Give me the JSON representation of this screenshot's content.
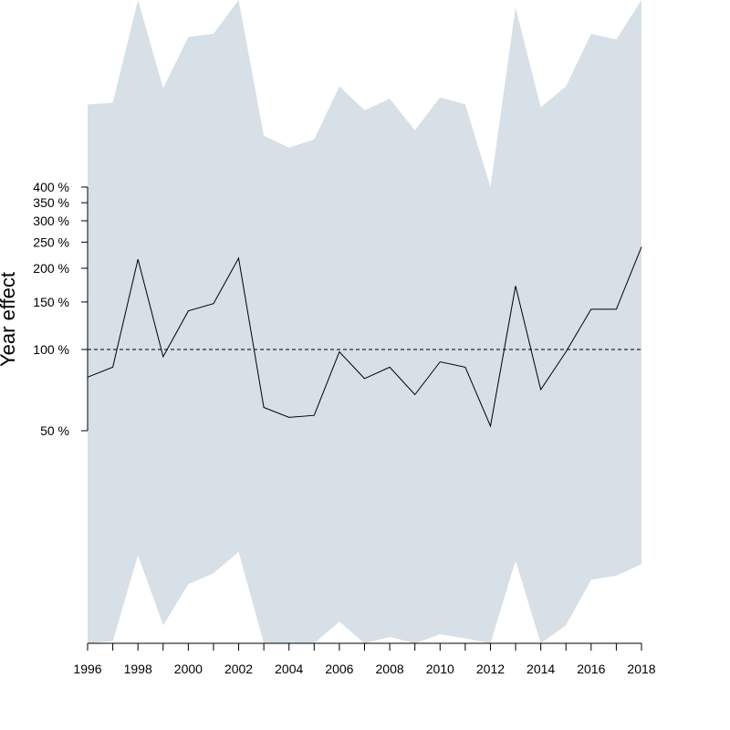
{
  "chart_data": {
    "type": "line",
    "title": "",
    "xlabel": "",
    "ylabel": "Year effect",
    "y_scale": "log",
    "y_ticks": [
      50,
      100,
      150,
      200,
      250,
      300,
      350,
      400
    ],
    "y_tick_labels": [
      "50 %",
      "100 %",
      "150 %",
      "200 %",
      "250 %",
      "300 %",
      "350 %",
      "400 %"
    ],
    "x_ticks": [
      1996,
      1998,
      2000,
      2002,
      2004,
      2006,
      2008,
      2010,
      2012,
      2014,
      2016,
      2018
    ],
    "x_tick_labels": [
      "1996",
      "1998",
      "2000",
      "2002",
      "2004",
      "2006",
      "2008",
      "2010",
      "2012",
      "2014",
      "2016",
      "2018"
    ],
    "reference_line": 100,
    "colors": {
      "band": "#d6e0e6",
      "line": "#000000"
    },
    "x": [
      1996,
      1997,
      1998,
      1999,
      2000,
      2001,
      2002,
      2003,
      2004,
      2005,
      2006,
      2007,
      2008,
      2009,
      2010,
      2011,
      2012,
      2013,
      2014,
      2015,
      2016,
      2017,
      2018
    ],
    "series": [
      {
        "role": "estimate",
        "values": [
          79,
          86,
          216,
          94,
          139,
          148,
          218,
          61,
          56,
          57,
          98,
          78,
          86,
          68,
          90,
          86,
          52,
          172,
          71,
          98,
          141,
          141,
          240
        ]
      },
      {
        "role": "upper-bound",
        "values": [
          810,
          820,
          2750,
          930,
          1440,
          1480,
          2780,
          620,
          560,
          600,
          945,
          770,
          850,
          650,
          860,
          810,
          400,
          1850,
          790,
          945,
          1480,
          1410,
          3600
        ]
      },
      {
        "role": "lower-bound",
        "values": [
          7.0,
          8.3,
          17.3,
          9.5,
          13.5,
          14.8,
          17.8,
          5.5,
          5.1,
          5.0,
          9.8,
          7.7,
          8.6,
          7.1,
          8.8,
          8.5,
          4.4,
          16.5,
          6.7,
          9.5,
          14.0,
          14.5,
          16.0
        ]
      }
    ]
  }
}
